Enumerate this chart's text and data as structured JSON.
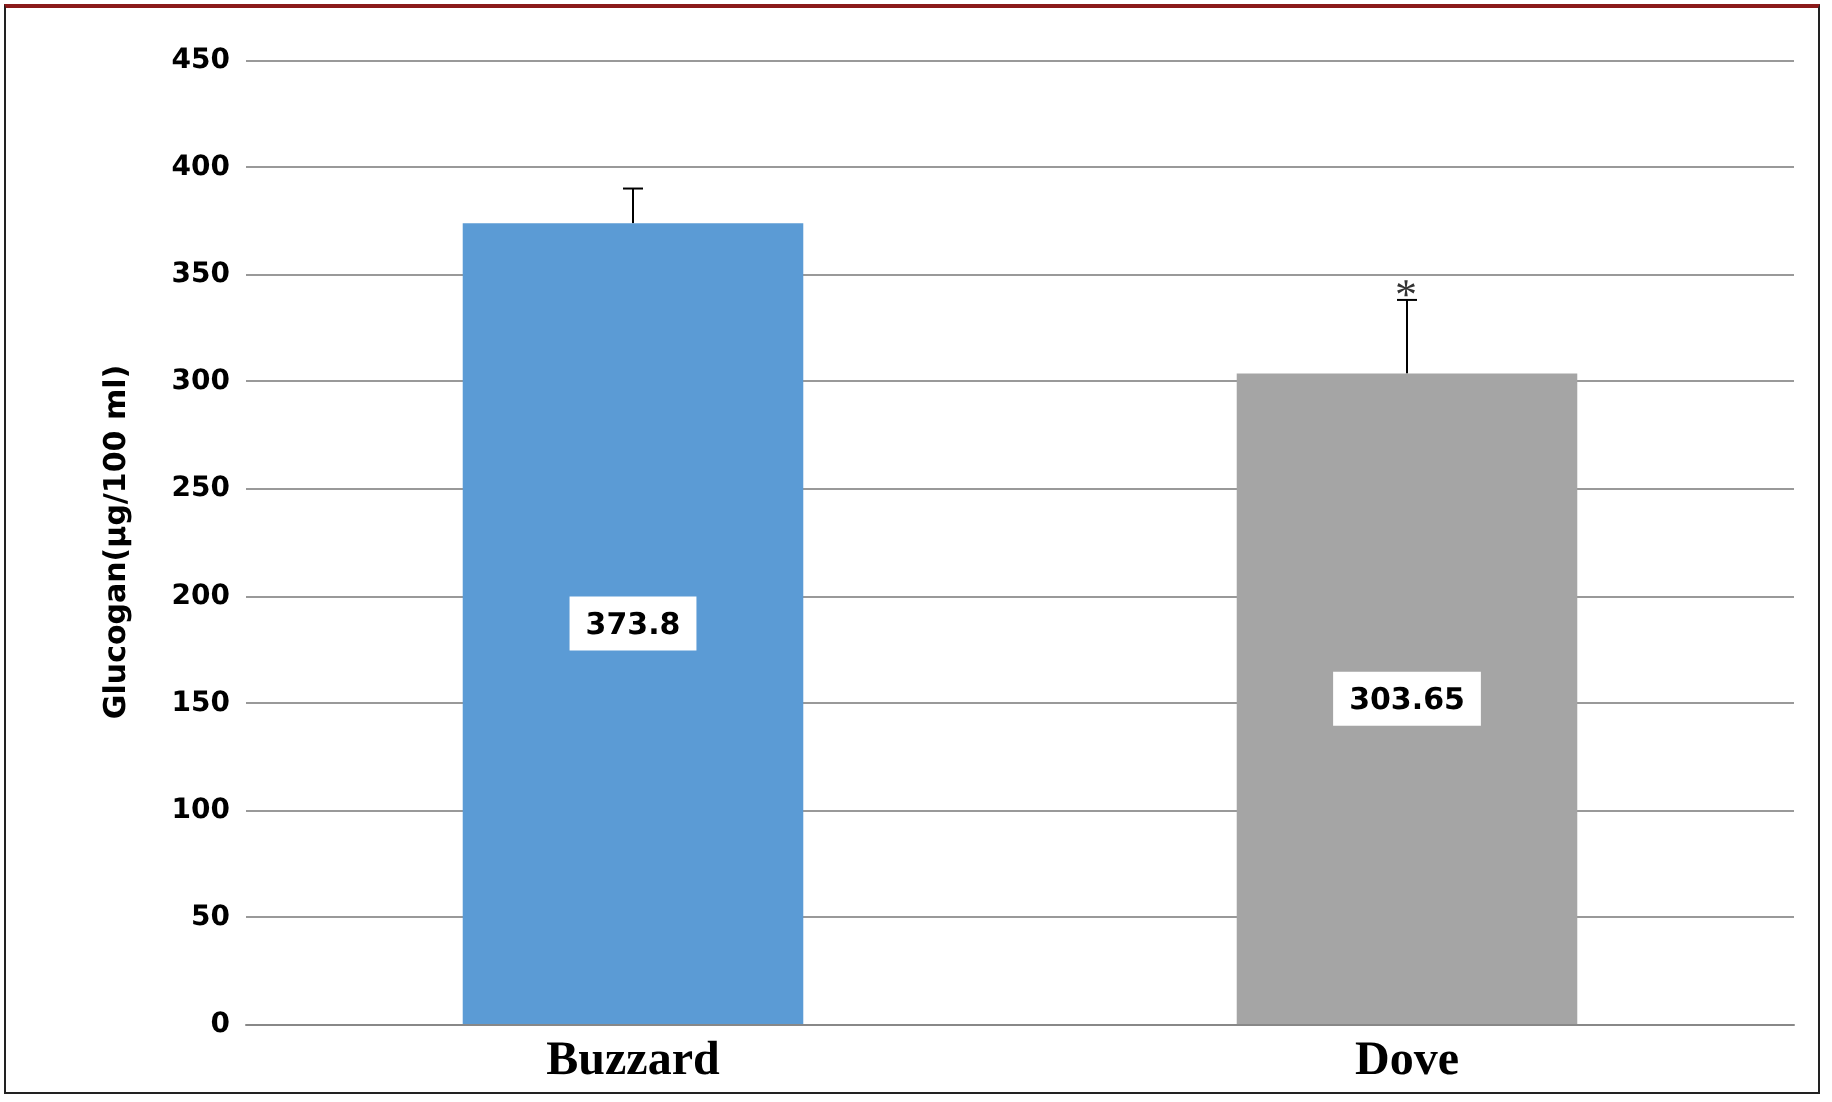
{
  "chart_data": {
    "type": "bar",
    "ylabel": "Glucogan(µg/100 ml)",
    "categories": [
      "Buzzard",
      "Dove"
    ],
    "values": [
      373.8,
      303.65
    ],
    "colors": [
      "#5b9bd5",
      "#a5a5a5"
    ],
    "errors": [
      [
        373.8,
        390
      ],
      [
        303.65,
        338
      ]
    ],
    "data_labels": true,
    "annotations": [
      {
        "text": "*",
        "x": "Dove",
        "y": 338
      }
    ],
    "ylim": [
      0,
      450
    ],
    "yticks": [
      0,
      50,
      100,
      150,
      200,
      250,
      300,
      350,
      400,
      450
    ],
    "grid": "y"
  }
}
